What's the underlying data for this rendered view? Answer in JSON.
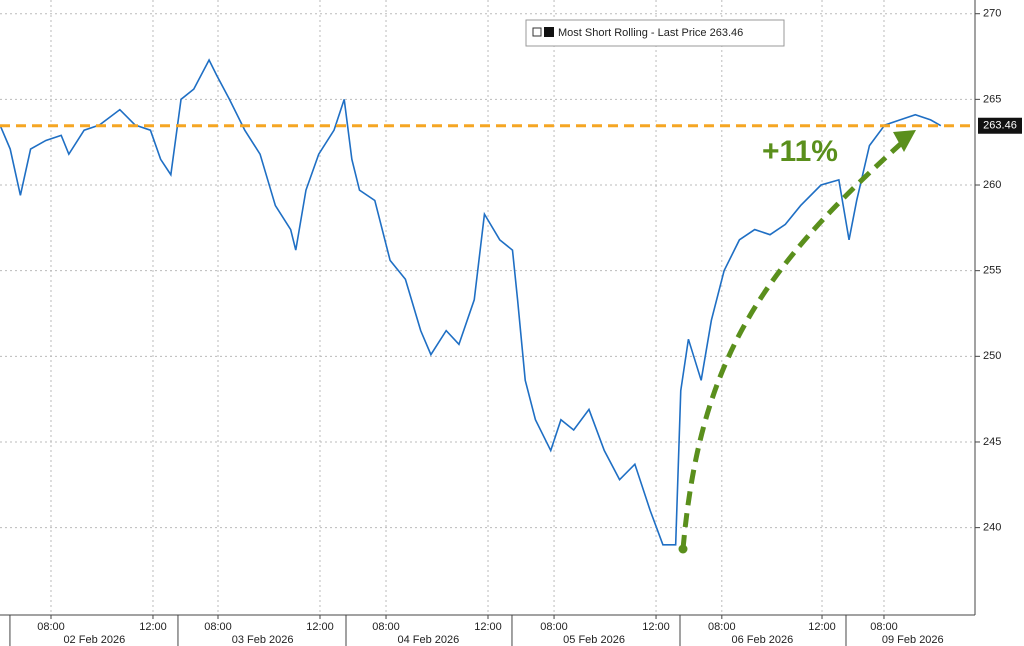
{
  "chart_data": {
    "type": "line",
    "series": [
      {
        "name": "Most Short Rolling - Last Price",
        "color": "#1f6fc4",
        "x": [
          0.0,
          0.4,
          0.8,
          1.2,
          1.8,
          2.4,
          2.7,
          3.3,
          3.9,
          4.7,
          5.3,
          5.9,
          6.3,
          6.7,
          7.1,
          7.6,
          8.2,
          8.5,
          9.0,
          9.6,
          10.2,
          10.8,
          11.4,
          11.6,
          12.0,
          12.5,
          13.1,
          13.5,
          13.8,
          14.1,
          14.7,
          15.3,
          15.9,
          16.5,
          16.9,
          17.5,
          18.0,
          18.6,
          19.0,
          19.6,
          20.1,
          20.3,
          20.6,
          21.0,
          21.6,
          22.0,
          22.5,
          23.1,
          23.7,
          24.3,
          24.9,
          25.5,
          26.0,
          26.5,
          26.7,
          27.0,
          27.5,
          27.9,
          28.4,
          29.0,
          29.6,
          30.2,
          30.8,
          31.4,
          32.2,
          32.9,
          33.3,
          33.6,
          34.1,
          34.7,
          35.3,
          35.9,
          36.5,
          36.9
        ],
        "values": [
          263.5,
          262.1,
          259.4,
          262.1,
          262.6,
          262.9,
          261.8,
          263.2,
          263.5,
          264.4,
          263.5,
          263.2,
          261.5,
          260.6,
          265.0,
          265.6,
          267.3,
          266.4,
          265.0,
          263.2,
          261.8,
          258.8,
          257.4,
          256.2,
          259.7,
          261.8,
          263.2,
          265.0,
          261.5,
          259.7,
          259.1,
          255.6,
          254.5,
          251.5,
          250.1,
          251.5,
          250.7,
          253.3,
          258.3,
          256.8,
          256.2,
          253.3,
          248.6,
          246.3,
          244.5,
          246.3,
          245.7,
          246.9,
          244.5,
          242.8,
          243.7,
          241.0,
          239.0,
          239.0,
          248.0,
          251.0,
          248.6,
          252.1,
          255.0,
          256.8,
          257.4,
          257.1,
          257.7,
          258.8,
          260.0,
          260.3,
          256.8,
          259.1,
          262.3,
          263.5,
          263.8,
          264.1,
          263.8,
          263.46
        ]
      }
    ],
    "last_price": 263.46,
    "reference_line": {
      "value": 263.46,
      "color": "#f5a623"
    },
    "annotation": "+11%",
    "annotation_color": "#5a8f1c",
    "xlim": [
      0,
      38.24
    ],
    "xticks": [
      {
        "value": 2.0,
        "label": "08:00"
      },
      {
        "value": 6.0,
        "label": "12:00"
      },
      {
        "value": 8.55,
        "label": "08:00"
      },
      {
        "value": 12.55,
        "label": "12:00"
      },
      {
        "value": 15.14,
        "label": "08:00"
      },
      {
        "value": 19.14,
        "label": "12:00"
      },
      {
        "value": 21.73,
        "label": "08:00"
      },
      {
        "value": 25.73,
        "label": "12:00"
      },
      {
        "value": 28.31,
        "label": "08:00"
      },
      {
        "value": 32.24,
        "label": "12:00"
      },
      {
        "value": 34.67,
        "label": "08:00"
      }
    ],
    "xday_labels": [
      {
        "value": 3.7,
        "label": "02 Feb 2026"
      },
      {
        "value": 10.3,
        "label": "03 Feb 2026"
      },
      {
        "value": 16.8,
        "label": "04 Feb 2026"
      },
      {
        "value": 23.3,
        "label": "05 Feb 2026"
      },
      {
        "value": 29.9,
        "label": "06 Feb 2026"
      },
      {
        "value": 35.8,
        "label": "09 Feb 2026"
      }
    ],
    "xday_breaks": [
      0.39,
      6.98,
      13.57,
      20.08,
      26.67,
      33.18
    ],
    "ylim": [
      234.9,
      270.8
    ],
    "yticks": [
      240,
      245,
      250,
      255,
      260,
      265,
      270
    ],
    "grid": true
  }
}
